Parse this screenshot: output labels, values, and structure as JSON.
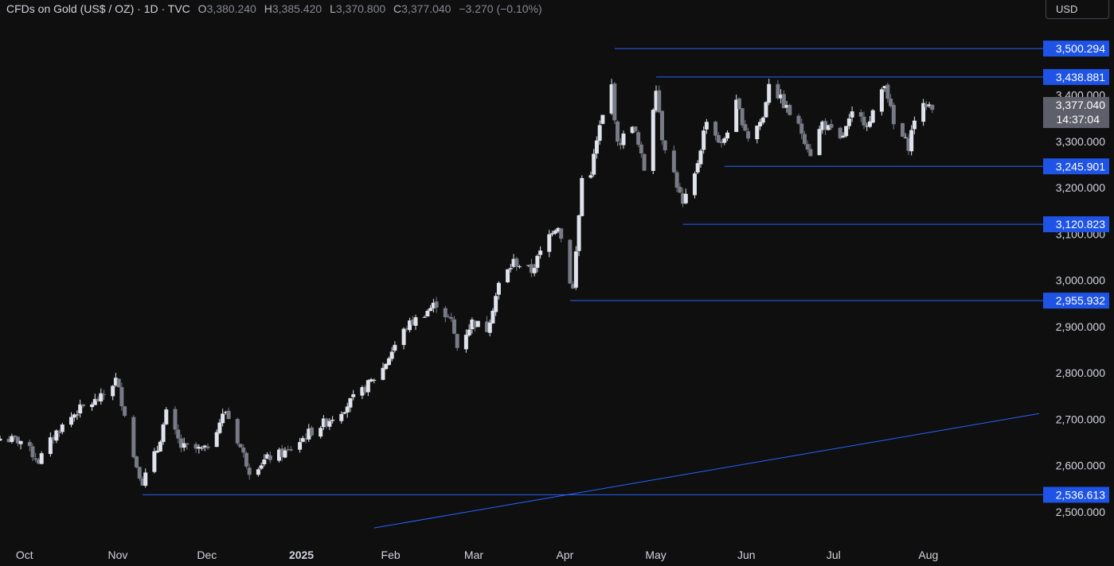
{
  "header": {
    "symbol": "CFDs on Gold (US$ / OZ) · 1D · TVC",
    "open_label": "O",
    "open": "3,380.240",
    "high_label": "H",
    "high": "3,385.420",
    "low_label": "L",
    "low": "3,370.800",
    "close_label": "C",
    "close": "3,377.040",
    "change": "−3.270 (−0.10%)"
  },
  "currency_button": "USD",
  "colors": {
    "background": "#0f0f0f",
    "up_candle": "#e0e3eb",
    "down_candle": "#787b86",
    "level_line": "#2962ff",
    "label_bg": "#1e53e5",
    "last_price_bg": "#5d606b"
  },
  "chart_data": {
    "type": "candlestick",
    "title": "CFDs on Gold (US$ / OZ)",
    "ylim": [
      2440,
      3560
    ],
    "y_ticks": [
      "2,500.000",
      "2,600.000",
      "2,700.000",
      "2,800.000",
      "2,900.000",
      "3,000.000",
      "3,100.000",
      "3,200.000",
      "3,300.000",
      "3,400.000"
    ],
    "y_tick_values": [
      2500,
      2600,
      2700,
      2800,
      2900,
      3000,
      3100,
      3200,
      3300,
      3400
    ],
    "x_labels": [
      "Oct",
      "Nov",
      "Dec",
      "2025",
      "Feb",
      "Mar",
      "Apr",
      "May",
      "Jun",
      "Jul",
      "Aug"
    ],
    "x_label_dates": [
      "2024-10-01",
      "2024-11-01",
      "2024-12-01",
      "2025-01-01",
      "2025-02-01",
      "2025-03-01",
      "2025-04-01",
      "2025-05-01",
      "2025-06-01",
      "2025-07-01",
      "2025-08-01"
    ],
    "x_range": [
      "2024-09-27",
      "2025-09-12"
    ],
    "last_price": "3,377.040",
    "countdown": "14:37:04",
    "horizontal_levels": [
      {
        "value": 3500.294,
        "label": "3,500.294",
        "start_date": "2025-04-22"
      },
      {
        "value": 3438.881,
        "label": "3,438.881",
        "start_date": "2025-05-06"
      },
      {
        "value": 3245.901,
        "label": "3,245.901",
        "start_date": "2025-05-29"
      },
      {
        "value": 3120.823,
        "label": "3,120.823",
        "start_date": "2025-05-15"
      },
      {
        "value": 2955.932,
        "label": "2,955.932",
        "start_date": "2025-04-07"
      },
      {
        "value": 2536.613,
        "label": "2,536.613",
        "start_date": "2024-11-14"
      }
    ],
    "trendline": {
      "start": {
        "date": "2025-01-31",
        "value": 2465
      },
      "end": {
        "date": "2025-09-12",
        "value": 2712
      }
    },
    "close_path": [
      [
        "2024-09-27",
        2658
      ],
      [
        "2024-10-04",
        2653
      ],
      [
        "2024-10-10",
        2610
      ],
      [
        "2024-10-16",
        2672
      ],
      [
        "2024-10-23",
        2718
      ],
      [
        "2024-10-31",
        2745
      ],
      [
        "2024-11-05",
        2785
      ],
      [
        "2024-11-08",
        2715
      ],
      [
        "2024-11-11",
        2618
      ],
      [
        "2024-11-14",
        2565
      ],
      [
        "2024-11-19",
        2635
      ],
      [
        "2024-11-22",
        2712
      ],
      [
        "2024-11-27",
        2640
      ],
      [
        "2024-12-02",
        2635
      ],
      [
        "2024-12-05",
        2632
      ],
      [
        "2024-12-10",
        2695
      ],
      [
        "2024-12-12",
        2718
      ],
      [
        "2024-12-16",
        2655
      ],
      [
        "2024-12-20",
        2590
      ],
      [
        "2024-12-27",
        2618
      ],
      [
        "2025-01-02",
        2630
      ],
      [
        "2025-01-09",
        2670
      ],
      [
        "2025-01-15",
        2695
      ],
      [
        "2025-01-20",
        2720
      ],
      [
        "2025-01-27",
        2760
      ],
      [
        "2025-02-03",
        2810
      ],
      [
        "2025-02-07",
        2860
      ],
      [
        "2025-02-11",
        2900
      ],
      [
        "2025-02-18",
        2935
      ],
      [
        "2025-02-21",
        2950
      ],
      [
        "2025-02-26",
        2910
      ],
      [
        "2025-02-28",
        2855
      ],
      [
        "2025-03-05",
        2910
      ],
      [
        "2025-03-10",
        2895
      ],
      [
        "2025-03-14",
        2990
      ],
      [
        "2025-03-19",
        3040
      ],
      [
        "2025-03-25",
        3020
      ],
      [
        "2025-04-01",
        3110
      ],
      [
        "2025-04-03",
        3120
      ],
      [
        "2025-04-07",
        3000
      ],
      [
        "2025-04-08",
        2980
      ],
      [
        "2025-04-11",
        3220
      ],
      [
        "2025-04-14",
        3235
      ],
      [
        "2025-04-17",
        3330
      ],
      [
        "2025-04-21",
        3420
      ],
      [
        "2025-04-23",
        3290
      ],
      [
        "2025-04-28",
        3340
      ],
      [
        "2025-05-02",
        3240
      ],
      [
        "2025-05-06",
        3420
      ],
      [
        "2025-05-08",
        3310
      ],
      [
        "2025-05-12",
        3230
      ],
      [
        "2025-05-15",
        3160
      ],
      [
        "2025-05-19",
        3225
      ],
      [
        "2025-05-23",
        3350
      ],
      [
        "2025-05-28",
        3290
      ],
      [
        "2025-06-02",
        3380
      ],
      [
        "2025-06-06",
        3310
      ],
      [
        "2025-06-11",
        3350
      ],
      [
        "2025-06-13",
        3430
      ],
      [
        "2025-06-18",
        3380
      ],
      [
        "2025-06-24",
        3320
      ],
      [
        "2025-06-27",
        3275
      ],
      [
        "2025-07-01",
        3340
      ],
      [
        "2025-07-07",
        3300
      ],
      [
        "2025-07-11",
        3355
      ],
      [
        "2025-07-17",
        3340
      ],
      [
        "2025-07-22",
        3430
      ],
      [
        "2025-07-25",
        3335
      ],
      [
        "2025-07-30",
        3290
      ],
      [
        "2025-08-01",
        3350
      ],
      [
        "2025-08-05",
        3380
      ],
      [
        "2025-08-07",
        3377
      ]
    ]
  }
}
